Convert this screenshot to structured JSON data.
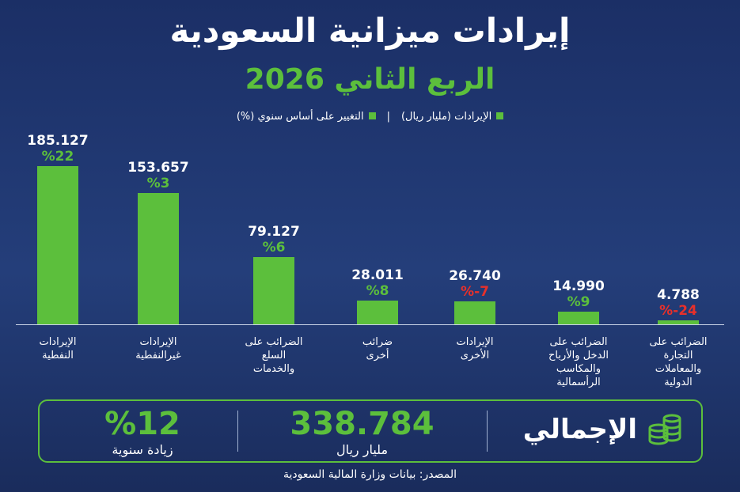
{
  "chart_data": {
    "type": "bar",
    "title": "إيرادات ميزانية السعودية",
    "subtitle": "الربع الثاني 2026",
    "categories": [
      "الإيرادات\nالنفطية",
      "الإيرادات\nغيرالنفطية",
      "الضرائب على\nالسلع\nوالخدمات",
      "ضرائب\nأخرى",
      "الإيرادات\nالأخرى",
      "الضرائب على\nالدخل والأرباح\nوالمكاسب\nالرأسمالية",
      "الضرائب على\nالتجارة\nوالمعاملات\nالدولية"
    ],
    "series": [
      {
        "name": "الإيرادات (مليار ريال)",
        "color": "#5cbf3c",
        "values": [
          185.127,
          153.657,
          79.127,
          28.011,
          26.74,
          14.99,
          4.788
        ],
        "value_labels": [
          "185.127",
          "153.657",
          "79.127",
          "28.011",
          "26.740",
          "14.990",
          "4.788"
        ]
      },
      {
        "name": "التغيير على أساس سنوي (%)",
        "color": "#5cbf3c",
        "negative_color": "#e8302a",
        "values": [
          22,
          3,
          6,
          8,
          -7,
          9,
          -24
        ],
        "value_labels": [
          "%22",
          "%3",
          "%6",
          "%8",
          "%-7",
          "%9",
          "%-24"
        ]
      }
    ],
    "summary": {
      "label": "الإجمالي",
      "total": "338.784",
      "total_unit": "مليار ريال",
      "growth": "%12",
      "growth_label": "زيادة سنوية"
    },
    "source": "المصدر: بيانات وزارة المالية السعودية"
  }
}
